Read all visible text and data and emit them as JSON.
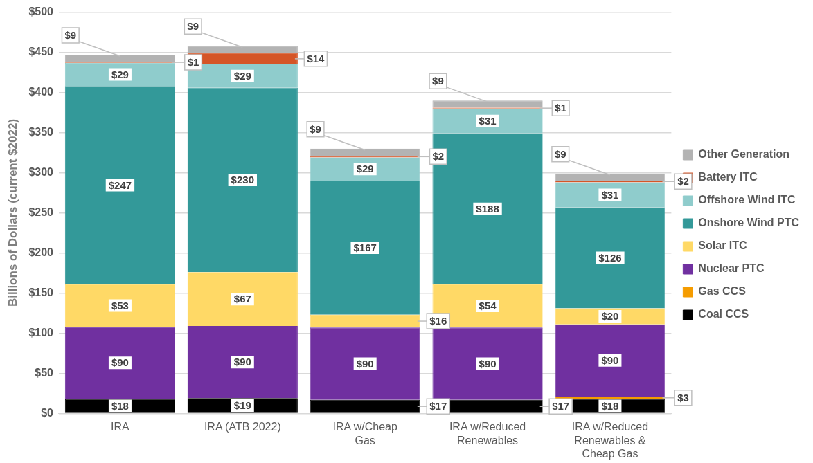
{
  "chart_data": {
    "type": "bar",
    "stacked": true,
    "ylabel": "Billions of Dollars (current $2022)",
    "categories": [
      "IRA",
      "IRA (ATB 2022)",
      "IRA w/Cheap Gas",
      "IRA w/Reduced Renewables",
      "IRA w/Reduced Renewables & Cheap Gas"
    ],
    "ylim": [
      0,
      500
    ],
    "yticks": [
      {
        "value": 0,
        "label": "$0"
      },
      {
        "value": 50,
        "label": "$50"
      },
      {
        "value": 100,
        "label": "$100"
      },
      {
        "value": 150,
        "label": "$150"
      },
      {
        "value": 200,
        "label": "$200"
      },
      {
        "value": 250,
        "label": "$250"
      },
      {
        "value": 300,
        "label": "$300"
      },
      {
        "value": 350,
        "label": "$350"
      },
      {
        "value": 400,
        "label": "$400"
      },
      {
        "value": 450,
        "label": "$450"
      },
      {
        "value": 500,
        "label": "$500"
      }
    ],
    "grid": "y",
    "legend": "right",
    "series": [
      {
        "name": "Coal CCS",
        "color": "#000000",
        "values": [
          18,
          19,
          17,
          17,
          18
        ],
        "value_labels": [
          "$18",
          "$19",
          "$17",
          "$17",
          "$18"
        ]
      },
      {
        "name": "Gas CCS",
        "color": "#f59c00",
        "values": [
          null,
          null,
          null,
          null,
          3
        ],
        "value_labels": [
          null,
          null,
          null,
          null,
          "$3"
        ]
      },
      {
        "name": "Nuclear PTC",
        "color": "#7030a0",
        "values": [
          90,
          90,
          90,
          90,
          90
        ],
        "value_labels": [
          "$90",
          "$90",
          "$90",
          "$90",
          "$90"
        ]
      },
      {
        "name": "Solar ITC",
        "color": "#ffd966",
        "values": [
          53,
          67,
          16,
          54,
          20
        ],
        "value_labels": [
          "$53",
          "$67",
          "$16",
          "$54",
          "$20"
        ]
      },
      {
        "name": "Onshore Wind PTC",
        "color": "#339999",
        "values": [
          247,
          230,
          167,
          188,
          126
        ],
        "value_labels": [
          "$247",
          "$230",
          "$167",
          "$188",
          "$126"
        ]
      },
      {
        "name": "Offshore Wind ITC",
        "color": "#8fcccc",
        "values": [
          29,
          29,
          29,
          31,
          31
        ],
        "value_labels": [
          "$29",
          "$29",
          "$29",
          "$31",
          "$31"
        ]
      },
      {
        "name": "Battery ITC",
        "color": "#d55527",
        "values": [
          1,
          14,
          2,
          1,
          2
        ],
        "value_labels": [
          "$1",
          "$14",
          "$2",
          "$1",
          "$2"
        ]
      },
      {
        "name": "Other Generation",
        "color": "#b3b3b3",
        "values": [
          9,
          9,
          9,
          9,
          9
        ],
        "value_labels": [
          "$9",
          "$9",
          "$9",
          "$9",
          "$9"
        ]
      }
    ]
  }
}
